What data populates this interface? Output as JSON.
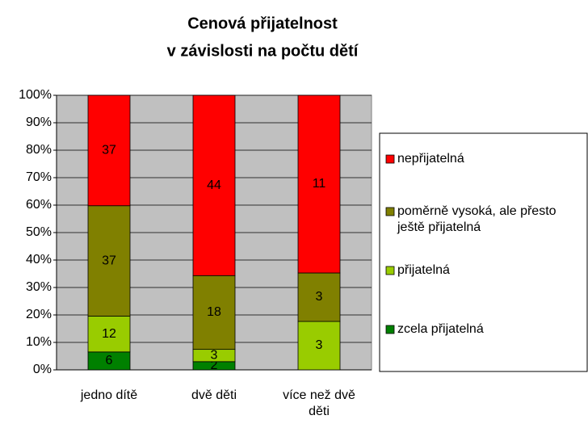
{
  "chart_data": {
    "type": "bar",
    "stacked": "percent",
    "title": [
      "Cenová přijatelnost",
      "v závislosti na počtu dětí"
    ],
    "categories": [
      "jedno dítě",
      "dvě děti",
      "více než dvě děti"
    ],
    "series": [
      {
        "name": "zcela přijatelná",
        "color": "#008000",
        "values": [
          6,
          2,
          0
        ]
      },
      {
        "name": "přijatelná",
        "color": "#99cc00",
        "values": [
          12,
          3,
          3
        ]
      },
      {
        "name": "poměrně vysoká, ale přesto ještě přijatelná",
        "color": "#808000",
        "values": [
          37,
          18,
          3
        ]
      },
      {
        "name": "nepřijatelná",
        "color": "#ff0000",
        "values": [
          37,
          44,
          11
        ]
      }
    ],
    "ylim": [
      0,
      100
    ],
    "yticks": [
      {
        "value": 0,
        "label": "0%"
      },
      {
        "value": 10,
        "label": "10%"
      },
      {
        "value": 20,
        "label": "20%"
      },
      {
        "value": 30,
        "label": "30%"
      },
      {
        "value": 40,
        "label": "40%"
      },
      {
        "value": 50,
        "label": "50%"
      },
      {
        "value": 60,
        "label": "60%"
      },
      {
        "value": 70,
        "label": "70%"
      },
      {
        "value": 80,
        "label": "80%"
      },
      {
        "value": 90,
        "label": "90%"
      },
      {
        "value": 100,
        "label": "100%"
      }
    ],
    "grid": true,
    "legend": "right",
    "plot_background": "#c0c0c0"
  }
}
